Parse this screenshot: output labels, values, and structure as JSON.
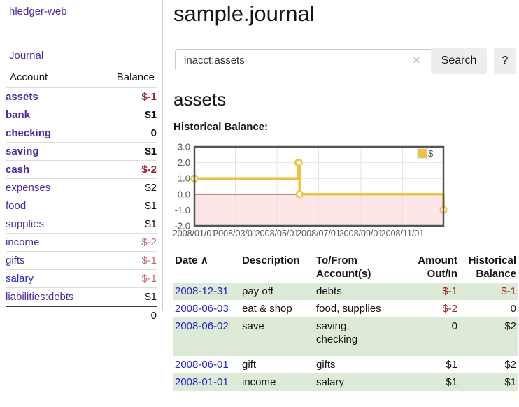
{
  "sidebar": {
    "app_title": "hledger-web",
    "nav": {
      "journal_label": "Journal"
    },
    "accounts_table": {
      "headers": {
        "account": "Account",
        "balance": "Balance"
      },
      "rows": [
        {
          "name": "assets",
          "balance": "$-1",
          "depth": 1,
          "bold": true,
          "balance_style": "neg"
        },
        {
          "name": "bank",
          "balance": "$1",
          "depth": 2,
          "bold": true,
          "balance_style": "pos"
        },
        {
          "name": "checking",
          "balance": "0",
          "depth": 3,
          "bold": true,
          "balance_style": "pos"
        },
        {
          "name": "saving",
          "balance": "$1",
          "depth": 3,
          "bold": true,
          "balance_style": "pos"
        },
        {
          "name": "cash",
          "balance": "$-2",
          "depth": 2,
          "bold": true,
          "balance_style": "neg"
        },
        {
          "name": "expenses",
          "balance": "$2",
          "depth": 1,
          "bold": false,
          "balance_style": "pos"
        },
        {
          "name": "food",
          "balance": "$1",
          "depth": 2,
          "bold": false,
          "balance_style": "pos"
        },
        {
          "name": "supplies",
          "balance": "$1",
          "depth": 2,
          "bold": false,
          "balance_style": "pos"
        },
        {
          "name": "income",
          "balance": "$-2",
          "depth": 1,
          "bold": false,
          "balance_style": "fneg"
        },
        {
          "name": "gifts",
          "balance": "$-1",
          "depth": 2,
          "bold": false,
          "balance_style": "fneg"
        },
        {
          "name": "salary",
          "balance": "$-1",
          "depth": 2,
          "bold": false,
          "balance_style": "fneg",
          "link_style": "blue"
        },
        {
          "name": "liabilities:debts",
          "balance": "$1",
          "depth": 1,
          "bold": false,
          "balance_style": "pos"
        }
      ],
      "total": "0"
    }
  },
  "header": {
    "title": "sample.journal"
  },
  "search": {
    "value": "inacct:assets",
    "clear_icon": "✕",
    "button_label": "Search",
    "help_label": "?"
  },
  "account_page": {
    "heading": "assets",
    "chart_label": "Historical Balance:"
  },
  "chart_data": {
    "type": "line",
    "title": "Historical Balance",
    "series": [
      {
        "name": "$",
        "color": "#edc240",
        "step": true,
        "points": [
          [
            "2008-01-01",
            1
          ],
          [
            "2008-06-01",
            2
          ],
          [
            "2008-06-02",
            2
          ],
          [
            "2008-06-03",
            0
          ],
          [
            "2008-12-31",
            -1
          ]
        ]
      }
    ],
    "xlim": [
      "2008-01-01",
      "2008-12-31"
    ],
    "ylim": [
      -2,
      3
    ],
    "yticks": [
      3,
      2,
      1,
      0,
      -1,
      -2
    ],
    "ytick_labels": [
      "3.0",
      "2.0",
      "1.0",
      "0.0",
      "-1.0",
      "-2.0"
    ],
    "xticks": [
      "2008-01-01",
      "2008-03-01",
      "2008-05-01",
      "2008-07-01",
      "2008-09-01",
      "2008-11-01"
    ],
    "xtick_labels": [
      "2008/01/01",
      "2008/03/01",
      "2008/05/01",
      "2008/07/01",
      "2008/09/01",
      "2008/11/01"
    ],
    "grid": true,
    "legend_position": "top-right",
    "legend_label": "$",
    "colors": {
      "line": "#edc240",
      "marker_fill": "#ffffff",
      "negative_region": "rgba(255,80,80,0.14)",
      "zero_line": "#8b2323",
      "gridline": "#e4e4e4",
      "plot_border": "#545454",
      "tick_text": "#545454"
    }
  },
  "register_table": {
    "headers": {
      "date": "Date",
      "sort_icon": "∧",
      "description": "Description",
      "tofrom_line1": "To/From",
      "tofrom_line2": "Account(s)",
      "amount_line1": "Amount",
      "amount_line2": "Out/In",
      "hist_line1": "Historical",
      "hist_line2": "Balance"
    },
    "rows": [
      {
        "date": "2008-12-31",
        "description": "pay off",
        "accounts": "debts",
        "amount": "$-1",
        "amount_neg": true,
        "balance": "$-1",
        "balance_neg": true,
        "shaded": true
      },
      {
        "date": "2008-06-03",
        "description": "eat & shop",
        "accounts": "food, supplies",
        "amount": "$-2",
        "amount_neg": true,
        "balance": "0",
        "balance_neg": false,
        "shaded": false
      },
      {
        "date": "2008-06-02",
        "description": "save",
        "accounts": "saving,\nchecking",
        "amount": "0",
        "amount_neg": false,
        "balance": "$2",
        "balance_neg": false,
        "shaded": true
      },
      {
        "date": "2008-06-01",
        "description": "gift",
        "accounts": "gifts",
        "amount": "$1",
        "amount_neg": false,
        "balance": "$2",
        "balance_neg": false,
        "shaded": false
      },
      {
        "date": "2008-01-01",
        "description": "income",
        "accounts": "salary",
        "amount": "$1",
        "amount_neg": false,
        "balance": "$1",
        "balance_neg": false,
        "shaded": true
      }
    ]
  },
  "colors": {
    "accent_purple": "#4e2a9e",
    "link_blue": "#2424cc",
    "negative": "#942031",
    "faded_negative": "#c2696f",
    "row_stripe_green": "#dcead7",
    "chart_gold": "#edc240"
  }
}
